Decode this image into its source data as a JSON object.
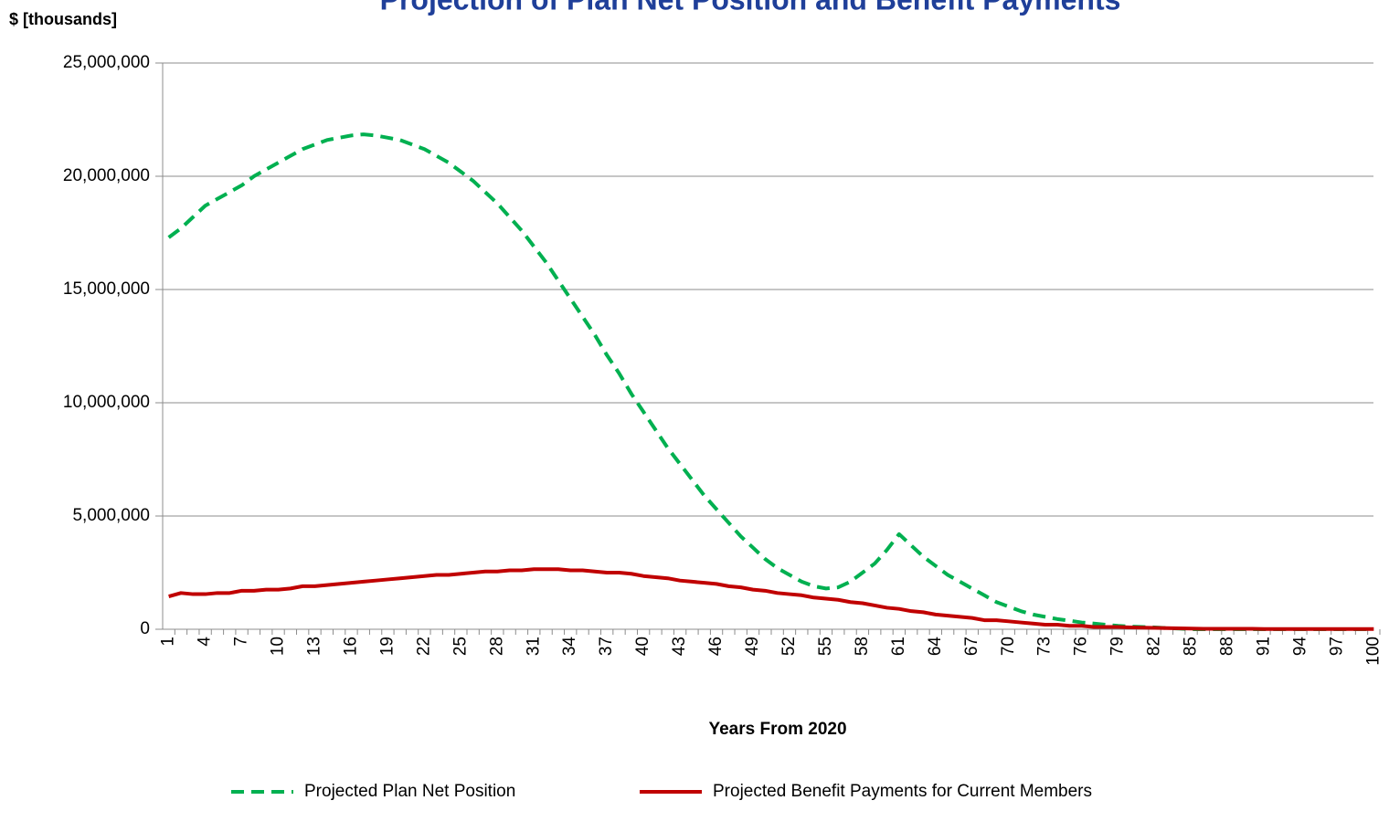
{
  "chart_data": {
    "type": "line",
    "title": "Projection of Plan Net Position and Benefit Payments",
    "y_unit_label": "$ [thousands]",
    "xlabel": "Years From 2020",
    "categories": [
      "1",
      null,
      null,
      "4",
      null,
      null,
      "7",
      null,
      null,
      "10",
      null,
      null,
      "13",
      null,
      null,
      "16",
      null,
      null,
      "19",
      null,
      null,
      "22",
      null,
      null,
      "25",
      null,
      null,
      "28",
      null,
      null,
      "31",
      null,
      null,
      "34",
      null,
      null,
      "37",
      null,
      null,
      "40",
      null,
      null,
      "43",
      null,
      null,
      "46",
      null,
      null,
      "49",
      null,
      null,
      "52",
      null,
      null,
      "55",
      null,
      null,
      "58",
      null,
      null,
      "61",
      null,
      null,
      "64",
      null,
      null,
      "67",
      null,
      null,
      "70",
      null,
      null,
      "73",
      null,
      null,
      "76",
      null,
      null,
      "79",
      null,
      null,
      "82",
      null,
      null,
      "85",
      null,
      null,
      "88",
      null,
      null,
      "91",
      null,
      null,
      "94",
      null,
      null,
      "97",
      null,
      null,
      "100"
    ],
    "ylim": [
      0,
      25000000
    ],
    "yticks": [
      0,
      {
        "value": 5000000,
        "label": "5,000,000"
      },
      {
        "value": 10000000,
        "label": "10,000,000"
      },
      {
        "value": 15000000,
        "label": "15,000,000"
      },
      {
        "value": 20000000,
        "label": "20,000,000"
      },
      {
        "value": 25000000,
        "label": "25,000,000"
      }
    ],
    "grid": true,
    "legend": "bottom",
    "series": [
      {
        "name": "Projected Plan Net Position",
        "color": "#00b050",
        "dashed": true,
        "values": [
          17300000,
          17700000,
          18200000,
          18700000,
          19000000,
          19300000,
          19600000,
          20000000,
          20300000,
          20600000,
          20900000,
          21200000,
          21400000,
          21600000,
          21700000,
          21800000,
          21850000,
          21800000,
          21700000,
          21600000,
          21400000,
          21200000,
          20900000,
          20600000,
          20200000,
          19800000,
          19300000,
          18800000,
          18200000,
          17600000,
          16900000,
          16200000,
          15400000,
          14600000,
          13800000,
          13000000,
          12100000,
          11300000,
          10400000,
          9600000,
          8800000,
          8000000,
          7300000,
          6600000,
          5900000,
          5300000,
          4700000,
          4100000,
          3600000,
          3100000,
          2700000,
          2400000,
          2100000,
          1900000,
          1800000,
          1850000,
          2100000,
          2500000,
          2900000,
          3500000,
          4200000,
          3700000,
          3200000,
          2800000,
          2400000,
          2100000,
          1800000,
          1500000,
          1200000,
          1000000,
          800000,
          650000,
          550000,
          450000,
          380000,
          300000,
          250000,
          200000,
          150000,
          120000,
          100000,
          80000,
          50000,
          30000,
          0,
          0,
          0,
          0,
          0,
          0,
          0,
          0,
          0,
          0,
          0,
          0,
          0,
          0,
          0,
          0
        ]
      },
      {
        "name": "Projected Benefit Payments for Current Members",
        "color": "#c00000",
        "dashed": false,
        "values": [
          1450000,
          1600000,
          1550000,
          1550000,
          1600000,
          1600000,
          1700000,
          1700000,
          1750000,
          1750000,
          1800000,
          1900000,
          1900000,
          1950000,
          2000000,
          2050000,
          2100000,
          2150000,
          2200000,
          2250000,
          2300000,
          2350000,
          2400000,
          2400000,
          2450000,
          2500000,
          2550000,
          2550000,
          2600000,
          2600000,
          2650000,
          2650000,
          2650000,
          2600000,
          2600000,
          2550000,
          2500000,
          2500000,
          2450000,
          2350000,
          2300000,
          2250000,
          2150000,
          2100000,
          2050000,
          2000000,
          1900000,
          1850000,
          1750000,
          1700000,
          1600000,
          1550000,
          1500000,
          1400000,
          1350000,
          1300000,
          1200000,
          1150000,
          1050000,
          950000,
          900000,
          800000,
          750000,
          650000,
          600000,
          550000,
          500000,
          400000,
          400000,
          350000,
          300000,
          250000,
          200000,
          200000,
          150000,
          150000,
          100000,
          100000,
          100000,
          80000,
          70000,
          60000,
          50000,
          40000,
          30000,
          20000,
          20000,
          20000,
          20000,
          20000,
          10000,
          10000,
          10000,
          10000,
          10000,
          10000,
          10000,
          10000,
          10000,
          10000
        ]
      }
    ]
  }
}
